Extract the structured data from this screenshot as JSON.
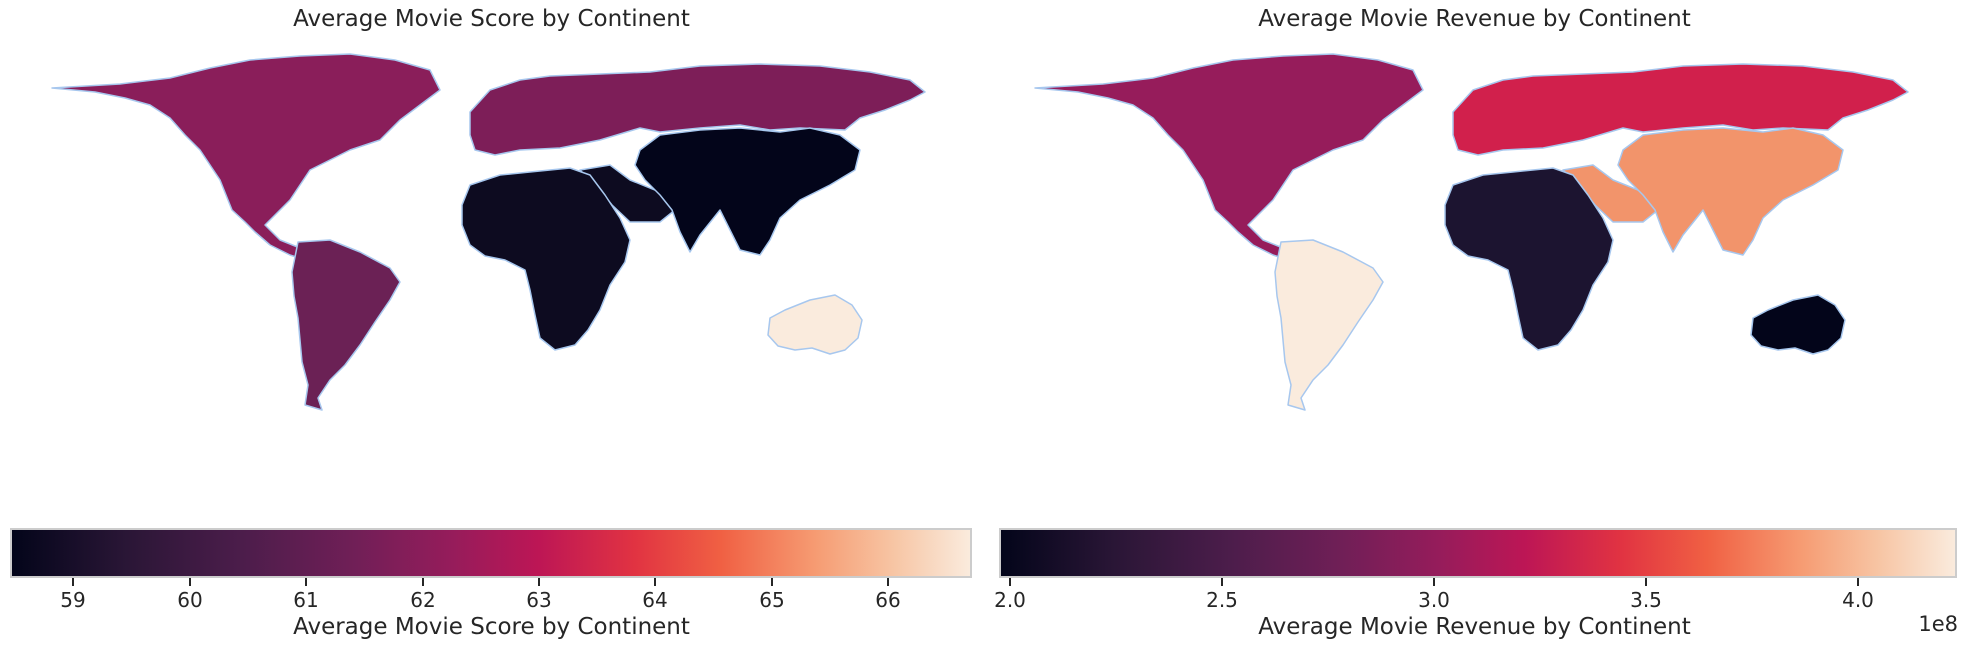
{
  "maps": [
    {
      "title": "Average Movie Score by Continent",
      "colorbar_label": "Average Movie Score by Continent",
      "ticks": [
        "59",
        "60",
        "61",
        "62",
        "63",
        "64",
        "65",
        "66"
      ],
      "offset_text": "",
      "fills": {
        "north_america": "#8a1e5a",
        "south_america": "#6b2155",
        "europe": "#7d1e58",
        "africa": "#0d0b20",
        "asia": "#03051a",
        "oceania": "#faebdd",
        "middle_east": "#0d0b20"
      }
    },
    {
      "title": "Average Movie Revenue by Continent",
      "colorbar_label": "Average Movie Revenue by Continent",
      "ticks": [
        "2.0",
        "2.5",
        "3.0",
        "3.5",
        "4.0"
      ],
      "offset_text": "1e8",
      "fills": {
        "north_america": "#961c5b",
        "south_america": "#faebdd",
        "europe": "#d1204c",
        "africa": "#1c1430",
        "asia": "#f2946b",
        "oceania": "#03051a",
        "middle_east": "#f2946b"
      }
    }
  ],
  "chart_data": [
    {
      "type": "choropleth",
      "title": "Average Movie Score by Continent",
      "colorbar": {
        "label": "Average Movie Score by Continent",
        "range": [
          58.5,
          66.7
        ],
        "colormap": "rocket"
      },
      "regions": [
        {
          "name": "Asia",
          "value": 58.5
        },
        {
          "name": "Africa",
          "value": 58.8
        },
        {
          "name": "South America",
          "value": 60.5
        },
        {
          "name": "Europe",
          "value": 61.0
        },
        {
          "name": "North America",
          "value": 61.3
        },
        {
          "name": "Oceania",
          "value": 66.7
        }
      ]
    },
    {
      "type": "choropleth",
      "title": "Average Movie Revenue by Continent",
      "colorbar": {
        "label": "Average Movie Revenue by Continent",
        "range": [
          1.95,
          4.2
        ],
        "scale_offset": "1e8",
        "colormap": "rocket"
      },
      "regions": [
        {
          "name": "Oceania",
          "value": 1.95
        },
        {
          "name": "Africa",
          "value": 2.1
        },
        {
          "name": "North America",
          "value": 2.85
        },
        {
          "name": "Europe",
          "value": 3.1
        },
        {
          "name": "Asia",
          "value": 3.7
        },
        {
          "name": "South America",
          "value": 4.2
        }
      ]
    }
  ]
}
